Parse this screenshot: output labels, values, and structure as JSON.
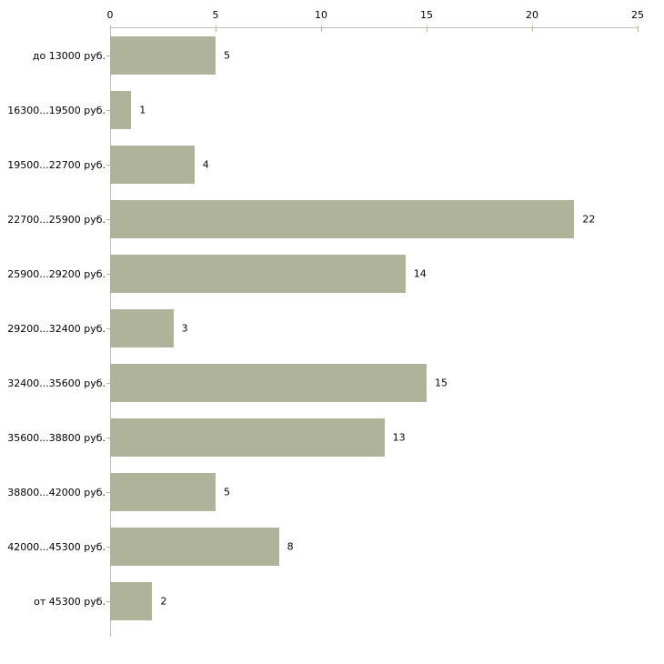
{
  "chart_data": {
    "type": "bar",
    "orientation": "horizontal",
    "title": "",
    "xlabel": "",
    "ylabel": "",
    "categories": [
      "до 13000 руб.",
      "16300...19500 руб.",
      "19500...22700 руб.",
      "22700...25900 руб.",
      "25900...29200 руб.",
      "29200...32400 руб.",
      "32400...35600 руб.",
      "35600...38800 руб.",
      "38800...42000 руб.",
      "42000...45300 руб.",
      "от 45300 руб."
    ],
    "values": [
      5,
      1,
      4,
      22,
      14,
      3,
      15,
      13,
      5,
      8,
      2
    ],
    "xlim": [
      0,
      25
    ],
    "x_ticks": [
      0,
      5,
      10,
      15,
      20,
      25
    ],
    "axis_position": "top",
    "grid": false,
    "legend": null,
    "colors": {
      "bar_fill": "#aeb399",
      "axis_line": "#c0c0c0",
      "tick_mark": "#b9ba93",
      "label_text": "#000000",
      "background": "#ffffff"
    }
  }
}
